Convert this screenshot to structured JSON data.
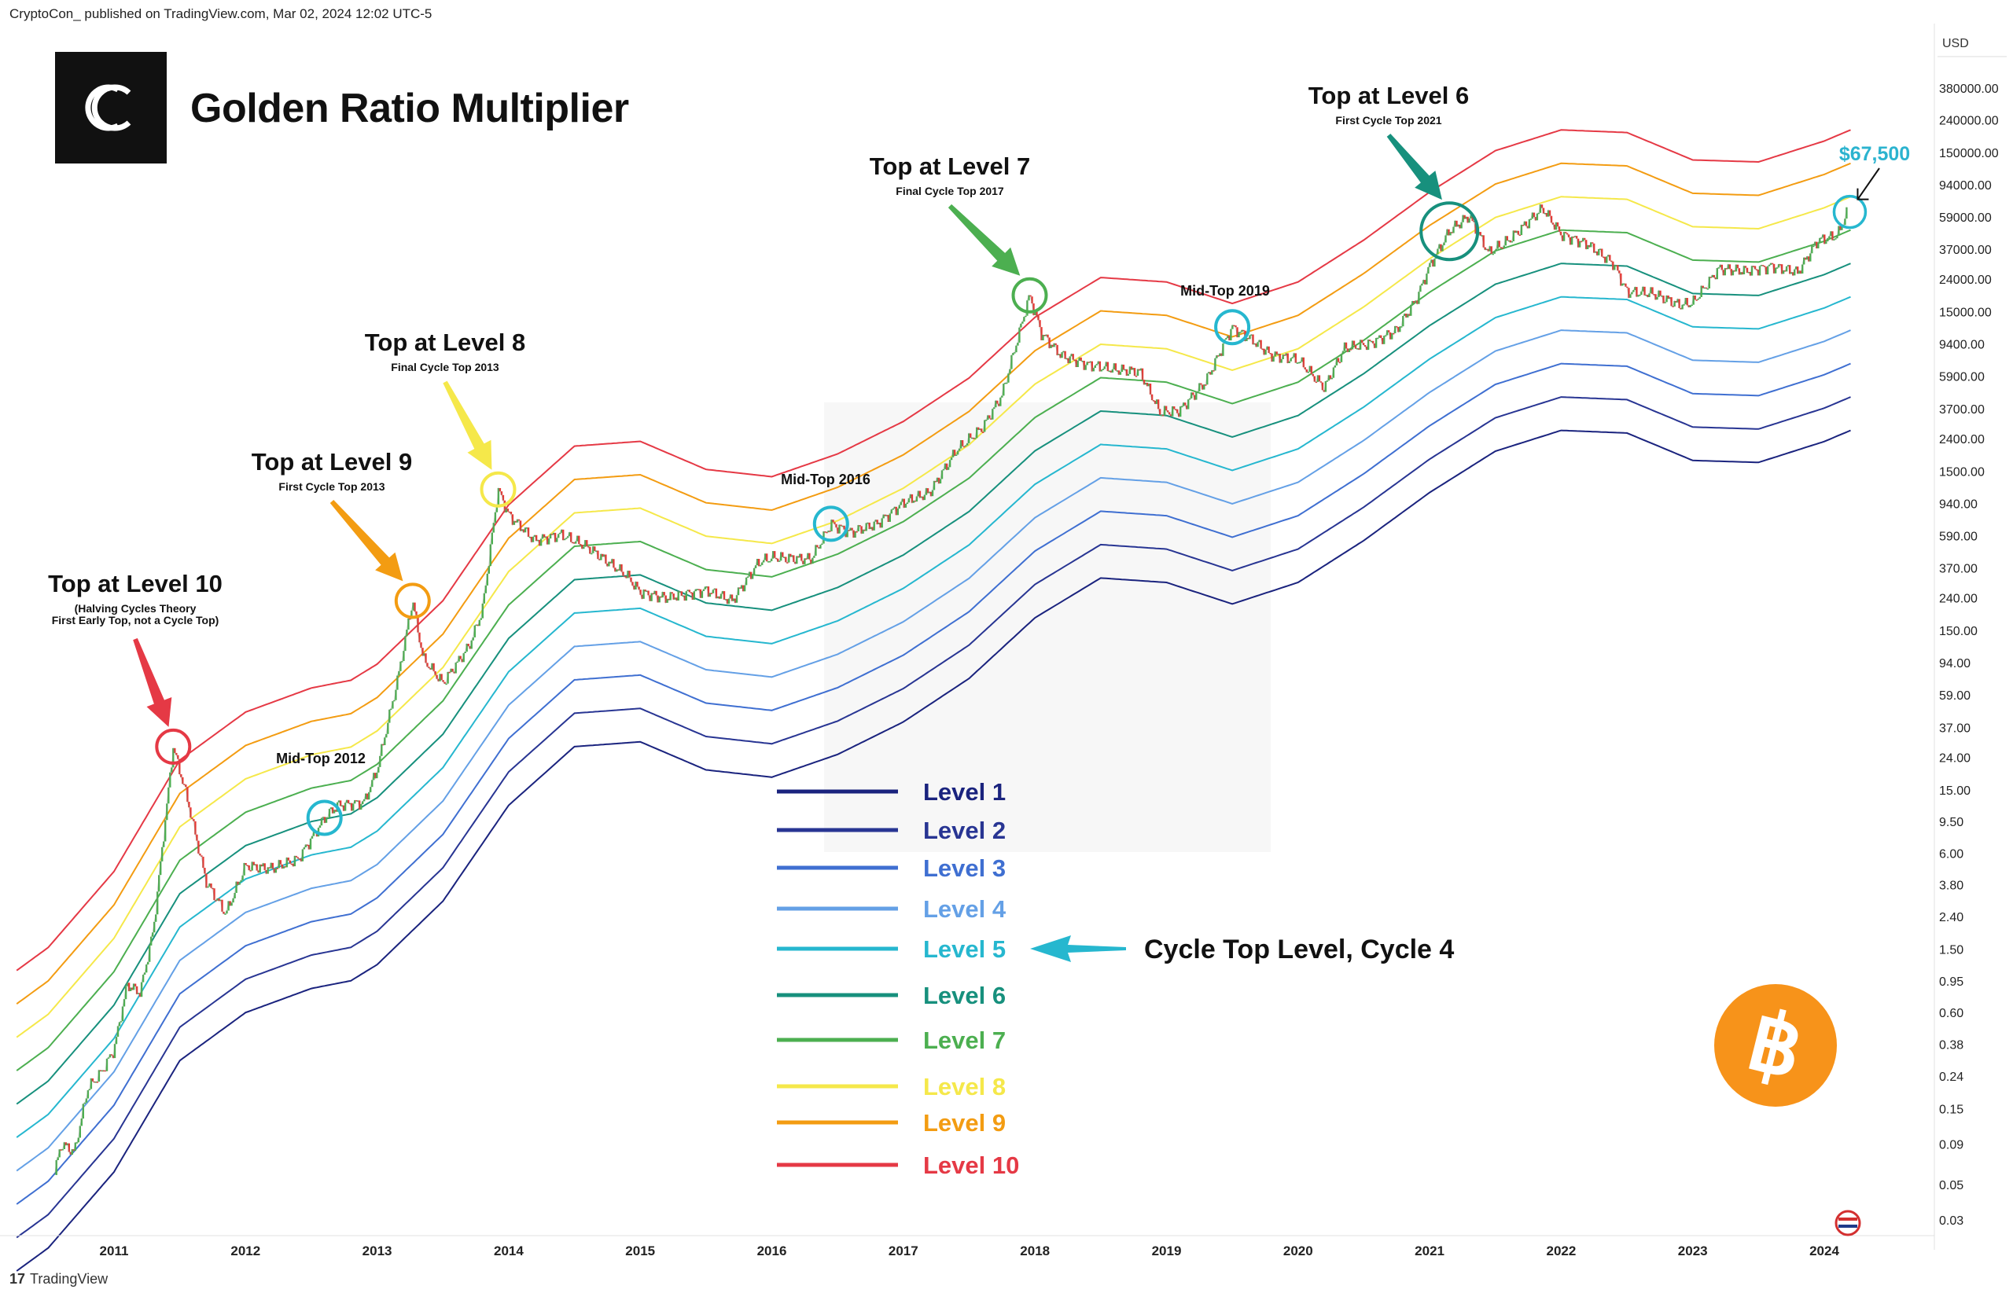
{
  "header": {
    "publisher": "CryptoCon_ published on TradingView.com, Mar 02, 2024 12:02 UTC-5"
  },
  "footer": {
    "brand": "TradingView"
  },
  "brand_logo": {
    "letters": "CC"
  },
  "chart_data": {
    "type": "line",
    "title": "Golden Ratio Multiplier",
    "currency": "USD",
    "scale": "log",
    "x_ticks": [
      "2011",
      "2012",
      "2013",
      "2014",
      "2015",
      "2016",
      "2017",
      "2018",
      "2019",
      "2020",
      "2021",
      "2022",
      "2023",
      "2024"
    ],
    "y_ticks": [
      380000,
      240000,
      150000,
      94000,
      59000,
      37000,
      24000,
      15000,
      9400,
      5900,
      3700,
      2400,
      1500,
      940,
      590,
      370,
      240,
      150,
      94,
      59,
      37,
      24,
      15,
      9.5,
      6,
      3.8,
      2.4,
      1.5,
      0.95,
      0.6,
      0.38,
      0.24,
      0.15,
      0.09,
      0.05,
      0.03
    ],
    "y_tick_labels": [
      "380000.00",
      "240000.00",
      "150000.00",
      "94000.00",
      "59000.00",
      "37000.00",
      "24000.00",
      "15000.00",
      "9400.00",
      "5900.00",
      "3700.00",
      "2400.00",
      "1500.00",
      "940.00",
      "590.00",
      "370.00",
      "240.00",
      "150.00",
      "94.00",
      "59.00",
      "37.00",
      "24.00",
      "15.00",
      "9.50",
      "6.00",
      "3.80",
      "2.40",
      "1.50",
      "0.95",
      "0.60",
      "0.38",
      "0.24",
      "0.15",
      "0.09",
      "0.05",
      "0.03"
    ],
    "levels": [
      {
        "name": "Level 1",
        "color": "#1a237e",
        "offset": 0
      },
      {
        "name": "Level 2",
        "color": "#283593",
        "offset": 1
      },
      {
        "name": "Level 3",
        "color": "#3f6fd1",
        "offset": 2
      },
      {
        "name": "Level 4",
        "color": "#64a0e6",
        "offset": 3
      },
      {
        "name": "Level 5",
        "color": "#26b7cf",
        "offset": 4
      },
      {
        "name": "Level 6",
        "color": "#17907d",
        "offset": 5
      },
      {
        "name": "Level 7",
        "color": "#4caf50",
        "offset": 6
      },
      {
        "name": "Level 8",
        "color": "#f5e84a",
        "offset": 7
      },
      {
        "name": "Level 9",
        "color": "#f39c12",
        "offset": 8
      },
      {
        "name": "Level 10",
        "color": "#e53945",
        "offset": 9
      }
    ],
    "level_base": [
      [
        2010.0,
        0.01
      ],
      [
        2010.5,
        0.02
      ],
      [
        2011.0,
        0.06
      ],
      [
        2011.5,
        0.3
      ],
      [
        2012.0,
        0.6
      ],
      [
        2012.5,
        0.85
      ],
      [
        2012.8,
        0.95
      ],
      [
        2013.0,
        1.2
      ],
      [
        2013.5,
        3
      ],
      [
        2014.0,
        12
      ],
      [
        2014.5,
        28
      ],
      [
        2015.0,
        30
      ],
      [
        2015.5,
        20
      ],
      [
        2016.0,
        18
      ],
      [
        2016.5,
        25
      ],
      [
        2017.0,
        40
      ],
      [
        2017.5,
        75
      ],
      [
        2018.0,
        180
      ],
      [
        2018.5,
        320
      ],
      [
        2019.0,
        300
      ],
      [
        2019.5,
        220
      ],
      [
        2020.0,
        300
      ],
      [
        2020.5,
        550
      ],
      [
        2021.0,
        1100
      ],
      [
        2021.5,
        2000
      ],
      [
        2022.0,
        2700
      ],
      [
        2022.5,
        2600
      ],
      [
        2023.0,
        1750
      ],
      [
        2023.5,
        1700
      ],
      [
        2024.0,
        2300
      ],
      [
        2024.2,
        2700
      ]
    ],
    "level_ratio": 1.62,
    "price": [
      [
        2010.55,
        0.06
      ],
      [
        2010.6,
        0.09
      ],
      [
        2010.7,
        0.08
      ],
      [
        2010.8,
        0.2
      ],
      [
        2010.9,
        0.25
      ],
      [
        2011.0,
        0.35
      ],
      [
        2011.1,
        0.9
      ],
      [
        2011.2,
        0.8
      ],
      [
        2011.3,
        2
      ],
      [
        2011.45,
        28
      ],
      [
        2011.55,
        14
      ],
      [
        2011.7,
        4
      ],
      [
        2011.85,
        2.5
      ],
      [
        2012.0,
        5
      ],
      [
        2012.2,
        4.8
      ],
      [
        2012.4,
        5.5
      ],
      [
        2012.6,
        10
      ],
      [
        2012.7,
        12
      ],
      [
        2012.9,
        12.5
      ],
      [
        2013.0,
        20
      ],
      [
        2013.15,
        70
      ],
      [
        2013.27,
        230
      ],
      [
        2013.35,
        100
      ],
      [
        2013.5,
        70
      ],
      [
        2013.7,
        120
      ],
      [
        2013.8,
        200
      ],
      [
        2013.92,
        1150
      ],
      [
        2014.0,
        800
      ],
      [
        2014.2,
        550
      ],
      [
        2014.4,
        600
      ],
      [
        2014.6,
        500
      ],
      [
        2014.9,
        330
      ],
      [
        2015.0,
        260
      ],
      [
        2015.2,
        240
      ],
      [
        2015.5,
        270
      ],
      [
        2015.7,
        230
      ],
      [
        2015.9,
        400
      ],
      [
        2016.0,
        430
      ],
      [
        2016.3,
        420
      ],
      [
        2016.45,
        700
      ],
      [
        2016.6,
        620
      ],
      [
        2016.8,
        700
      ],
      [
        2017.0,
        950
      ],
      [
        2017.2,
        1100
      ],
      [
        2017.4,
        2000
      ],
      [
        2017.6,
        2800
      ],
      [
        2017.75,
        4500
      ],
      [
        2017.96,
        19000
      ],
      [
        2018.05,
        11000
      ],
      [
        2018.2,
        8000
      ],
      [
        2018.4,
        7000
      ],
      [
        2018.6,
        6500
      ],
      [
        2018.8,
        6300
      ],
      [
        2018.95,
        3500
      ],
      [
        2019.1,
        3600
      ],
      [
        2019.3,
        5500
      ],
      [
        2019.5,
        12000
      ],
      [
        2019.65,
        10000
      ],
      [
        2019.8,
        8000
      ],
      [
        2020.0,
        7500
      ],
      [
        2020.2,
        5000
      ],
      [
        2020.35,
        8800
      ],
      [
        2020.55,
        9500
      ],
      [
        2020.75,
        11500
      ],
      [
        2020.9,
        18000
      ],
      [
        2021.0,
        29000
      ],
      [
        2021.15,
        48000
      ],
      [
        2021.3,
        60000
      ],
      [
        2021.45,
        35000
      ],
      [
        2021.6,
        42000
      ],
      [
        2021.86,
        67000
      ],
      [
        2022.0,
        46000
      ],
      [
        2022.2,
        40000
      ],
      [
        2022.4,
        30000
      ],
      [
        2022.5,
        20000
      ],
      [
        2022.7,
        19500
      ],
      [
        2022.9,
        16500
      ],
      [
        2023.0,
        17000
      ],
      [
        2023.2,
        28000
      ],
      [
        2023.4,
        27000
      ],
      [
        2023.6,
        29000
      ],
      [
        2023.8,
        26500
      ],
      [
        2023.95,
        42000
      ],
      [
        2024.1,
        45000
      ],
      [
        2024.17,
        62000
      ]
    ],
    "annotations": [
      {
        "title": "Top at Level 10",
        "sub": "(Halving Cycles Theory\nFirst Early Top, not a Cycle Top)",
        "t": 2011.45,
        "p": 28,
        "circle": "#e53945",
        "label_pos": [
          2011.15,
          460
        ],
        "arrow_start": [
          2011.2,
          0.0
        ]
      },
      {
        "title": "Top at Level 9",
        "sub": "First Cycle Top 2013",
        "t": 2013.27,
        "p": 230,
        "circle": "#f39c12"
      },
      {
        "title": "Top at Level 8",
        "sub": "Final Cycle Top 2013",
        "t": 2013.92,
        "p": 1150,
        "circle": "#f5e84a"
      },
      {
        "title": "Top at Level 7",
        "sub": "Final Cycle Top 2017",
        "t": 2017.96,
        "p": 19000,
        "circle": "#4caf50"
      },
      {
        "title": "Top at Level 6",
        "sub": "First Cycle Top 2021",
        "t": 2021.15,
        "p": 48000,
        "circle": "#17907d"
      },
      {
        "title": "Mid-Top 2012",
        "sub": "",
        "t": 2012.6,
        "p": 10,
        "circle": "#26b7cf"
      },
      {
        "title": "Mid-Top 2016",
        "sub": "",
        "t": 2016.45,
        "p": 700,
        "circle": "#26b7cf"
      },
      {
        "title": "Mid-Top 2019",
        "sub": "",
        "t": 2019.5,
        "p": 12000,
        "circle": "#26b7cf"
      }
    ],
    "price_callout": {
      "label": "$67,500",
      "color": "#2bb3cf"
    },
    "callout": {
      "label": "Cycle Top Level, Cycle 4",
      "points_to": "Level 5"
    }
  }
}
